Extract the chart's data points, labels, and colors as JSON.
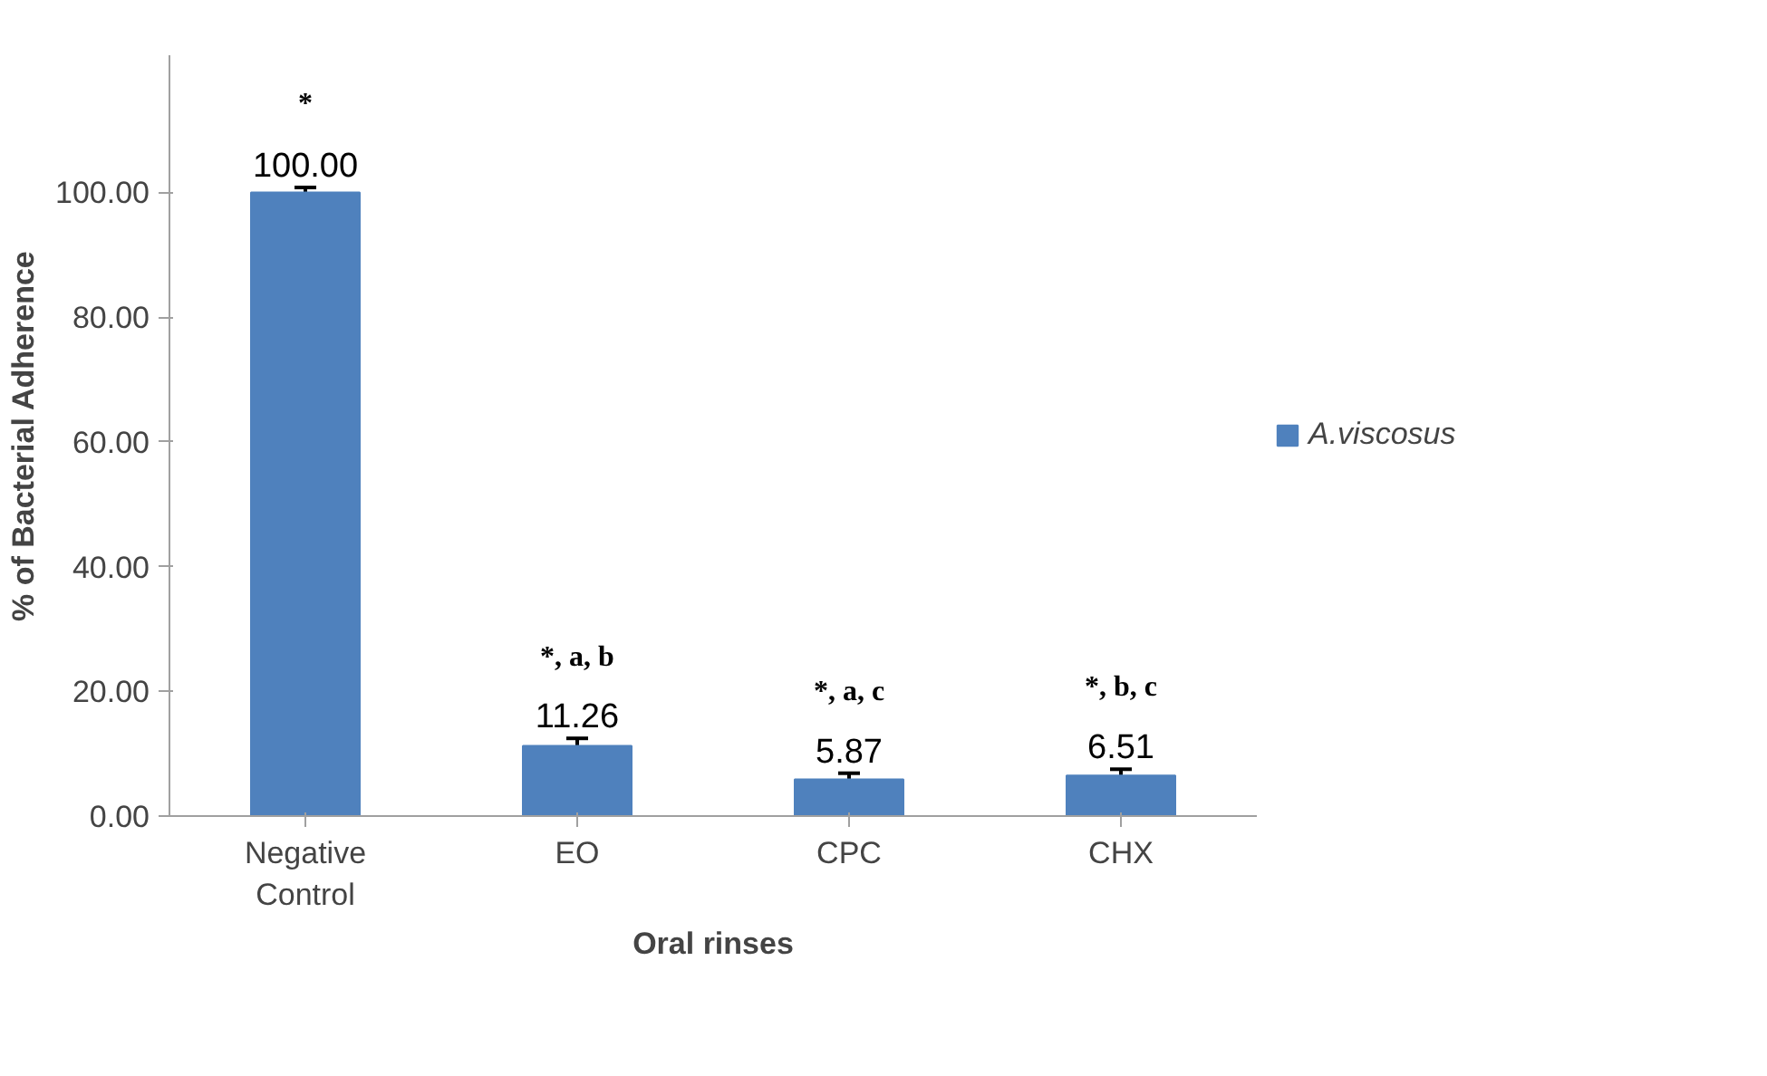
{
  "chart_data": {
    "type": "bar",
    "xlabel": "Oral rinses",
    "ylabel": "% of Bacterial Adherence",
    "categories": [
      "Negative Control",
      "EO",
      "CPC",
      "CHX"
    ],
    "series": [
      {
        "name": "A.viscosus",
        "color": "#4f81bd",
        "values": [
          100.0,
          11.26,
          5.87,
          6.51
        ],
        "errors": [
          0.8,
          1.2,
          1.0,
          1.0
        ],
        "value_labels": [
          "100.00",
          "11.26",
          "5.87",
          "6.51"
        ]
      }
    ],
    "ylim": [
      0,
      122
    ],
    "yticks": [
      {
        "value": 0,
        "label": "0.00"
      },
      {
        "value": 20,
        "label": "20.00"
      },
      {
        "value": 40,
        "label": "40.00"
      },
      {
        "value": 60,
        "label": "60.00"
      },
      {
        "value": 80,
        "label": "80.00"
      },
      {
        "value": 100,
        "label": "100.00"
      }
    ],
    "annotations": [
      "*",
      "*, a, b",
      "*, a, c",
      "*, b, c"
    ],
    "grid": false,
    "legend": "right"
  }
}
